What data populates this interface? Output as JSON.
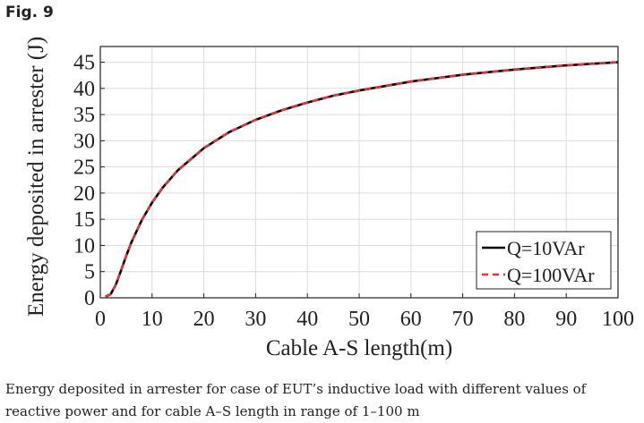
{
  "figure": {
    "label": "Fig. 9",
    "caption": "Energy deposited in arrester for case of EUT’s inductive load with different values of reactive power and for cable A–S length in range of 1–100 m"
  },
  "chart_data": {
    "type": "line",
    "xlabel": "Cable A-S length(m)",
    "ylabel": "Energy deposited in arrester (J)",
    "xlim": [
      0,
      100
    ],
    "ylim": [
      0,
      48
    ],
    "xticks": [
      0,
      10,
      20,
      30,
      40,
      50,
      60,
      70,
      80,
      90,
      100
    ],
    "yticks": [
      0,
      5,
      10,
      15,
      20,
      25,
      30,
      35,
      40,
      45
    ],
    "grid": true,
    "legend_position": "bottom-right",
    "x": [
      1,
      2,
      3,
      4,
      5,
      6,
      8,
      10,
      12,
      15,
      20,
      25,
      30,
      35,
      40,
      45,
      50,
      60,
      70,
      80,
      90,
      100
    ],
    "series": [
      {
        "name": "Q=10VAr",
        "color": "#000000",
        "style": "solid",
        "values": [
          0.2,
          0.7,
          2.5,
          5.2,
          8.0,
          10.6,
          14.8,
          18.2,
          21.0,
          24.4,
          28.6,
          31.7,
          34.0,
          35.8,
          37.3,
          38.6,
          39.6,
          41.3,
          42.6,
          43.6,
          44.4,
          45.0
        ]
      },
      {
        "name": "Q=100VAr",
        "color": "#ff2a2a",
        "style": "dashed",
        "values": [
          0.2,
          0.7,
          2.5,
          5.2,
          8.0,
          10.6,
          14.8,
          18.2,
          21.0,
          24.4,
          28.6,
          31.7,
          34.0,
          35.8,
          37.3,
          38.6,
          39.6,
          41.3,
          42.6,
          43.6,
          44.4,
          45.0
        ]
      }
    ]
  }
}
